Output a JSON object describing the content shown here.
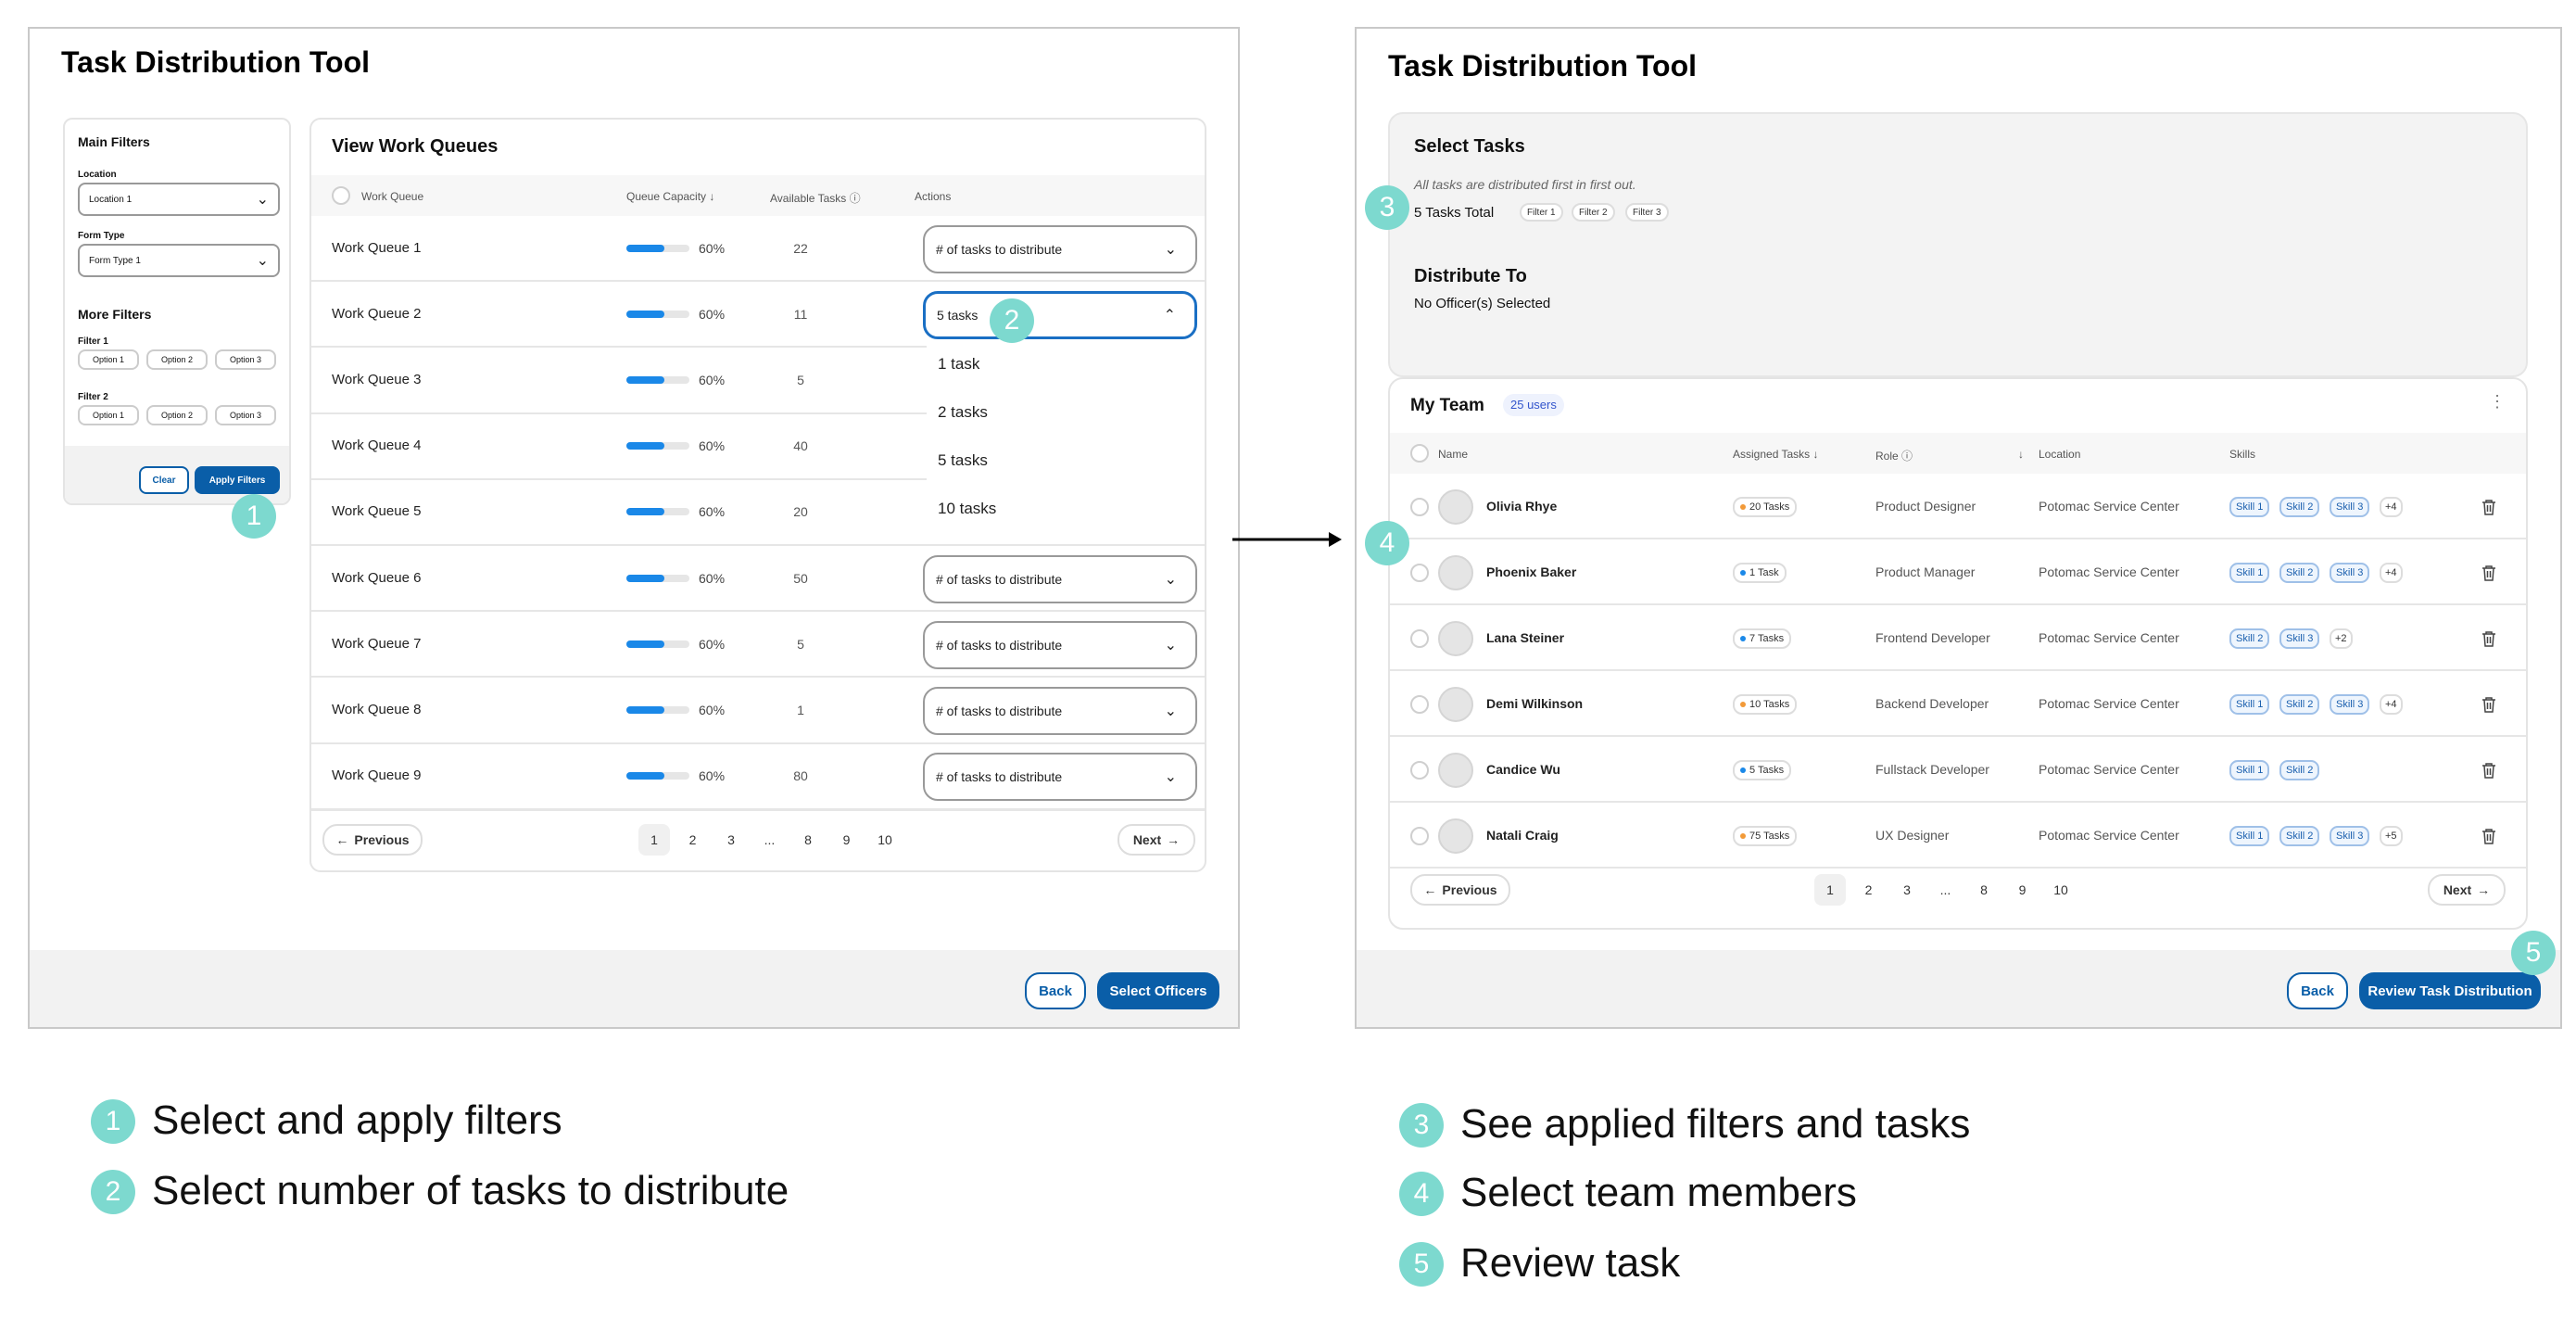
{
  "left_screen": {
    "title": "Task Distribution Tool",
    "filters": {
      "main_heading": "Main Filters",
      "location_label": "Location",
      "location_value": "Location 1",
      "form_type_label": "Form Type",
      "form_type_value": "Form Type 1",
      "more_heading": "More Filters",
      "filter1_label": "Filter 1",
      "filter2_label": "Filter 2",
      "options": [
        "Option 1",
        "Option 2",
        "Option 3"
      ],
      "clear_label": "Clear",
      "apply_label": "Apply Filters"
    },
    "queues": {
      "title": "View Work Queues",
      "columns": [
        "Work Queue",
        "Queue Capacity",
        "Available Tasks",
        "Actions"
      ],
      "rows": [
        {
          "name": "Work Queue 1",
          "capacity_pct": 60,
          "capacity_label": "60%",
          "available": "22",
          "action": "# of tasks to distribute"
        },
        {
          "name": "Work Queue 2",
          "capacity_pct": 60,
          "capacity_label": "60%",
          "available": "11",
          "action": "5 tasks"
        },
        {
          "name": "Work Queue 3",
          "capacity_pct": 60,
          "capacity_label": "60%",
          "available": "5",
          "action": ""
        },
        {
          "name": "Work Queue 4",
          "capacity_pct": 60,
          "capacity_label": "60%",
          "available": "40",
          "action": ""
        },
        {
          "name": "Work Queue 5",
          "capacity_pct": 60,
          "capacity_label": "60%",
          "available": "20",
          "action": ""
        },
        {
          "name": "Work Queue 6",
          "capacity_pct": 60,
          "capacity_label": "60%",
          "available": "50",
          "action": "# of tasks to distribute"
        },
        {
          "name": "Work Queue 7",
          "capacity_pct": 60,
          "capacity_label": "60%",
          "available": "5",
          "action": "# of tasks to distribute"
        },
        {
          "name": "Work Queue 8",
          "capacity_pct": 60,
          "capacity_label": "60%",
          "available": "1",
          "action": "# of tasks to distribute"
        },
        {
          "name": "Work Queue 9",
          "capacity_pct": 60,
          "capacity_label": "60%",
          "available": "80",
          "action": "# of tasks to distribute"
        }
      ],
      "dropdown_options": [
        "1 task",
        "2 tasks",
        "5 tasks",
        "10 tasks"
      ]
    },
    "pagination": {
      "previous": "Previous",
      "next": "Next",
      "pages": [
        "1",
        "2",
        "3",
        "...",
        "8",
        "9",
        "10"
      ]
    },
    "back_label": "Back",
    "select_officers_label": "Select Officers"
  },
  "right_screen": {
    "title": "Task Distribution Tool",
    "select_tasks": {
      "heading": "Select Tasks",
      "note": "All tasks are distributed first in first out.",
      "total": "5 Tasks Total",
      "chips": [
        "Filter 1",
        "Filter 2",
        "Filter 3"
      ]
    },
    "distribute_to": {
      "heading": "Distribute To",
      "value": "No Officer(s) Selected"
    },
    "team": {
      "title": "My Team",
      "count_badge": "25 users",
      "columns": [
        "Name",
        "Assigned Tasks",
        "Role",
        "Location",
        "Skills"
      ],
      "members": [
        {
          "name": "Olivia Rhye",
          "tasks": "20 Tasks",
          "dot": "#f29a38",
          "role": "Product Designer",
          "location": "Potomac Service Center",
          "skills": [
            "Skill 1",
            "Skill 2",
            "Skill 3"
          ],
          "more": "+4"
        },
        {
          "name": "Phoenix Baker",
          "tasks": "1 Task",
          "dot": "#1a88e8",
          "role": "Product Manager",
          "location": "Potomac Service Center",
          "skills": [
            "Skill 1",
            "Skill 2",
            "Skill 3"
          ],
          "more": "+4"
        },
        {
          "name": "Lana Steiner",
          "tasks": "7 Tasks",
          "dot": "#1a88e8",
          "role": "Frontend Developer",
          "location": "Potomac Service Center",
          "skills": [
            "Skill 2",
            "Skill 3"
          ],
          "more": "+2"
        },
        {
          "name": "Demi Wilkinson",
          "tasks": "10 Tasks",
          "dot": "#f29a38",
          "role": "Backend Developer",
          "location": "Potomac Service Center",
          "skills": [
            "Skill 1",
            "Skill 2",
            "Skill 3"
          ],
          "more": "+4"
        },
        {
          "name": "Candice Wu",
          "tasks": "5 Tasks",
          "dot": "#1a88e8",
          "role": "Fullstack Developer",
          "location": "Potomac Service Center",
          "skills": [
            "Skill 1",
            "Skill 2"
          ],
          "more": ""
        },
        {
          "name": "Natali Craig",
          "tasks": "75 Tasks",
          "dot": "#f29a38",
          "role": "UX Designer",
          "location": "Potomac Service Center",
          "skills": [
            "Skill 1",
            "Skill 2",
            "Skill 3"
          ],
          "more": "+5"
        }
      ]
    },
    "pagination": {
      "previous": "Previous",
      "next": "Next",
      "pages": [
        "1",
        "2",
        "3",
        "...",
        "8",
        "9",
        "10"
      ]
    },
    "back_label": "Back",
    "review_label": "Review Task Distribution"
  },
  "steps": [
    {
      "num": "1",
      "text": "Select and apply filters"
    },
    {
      "num": "2",
      "text": "Select number of tasks to distribute"
    },
    {
      "num": "3",
      "text": "See applied filters and tasks"
    },
    {
      "num": "4",
      "text": "Select team members"
    },
    {
      "num": "5",
      "text": "Review task"
    }
  ],
  "colors": {
    "primary": "#0a5ea8",
    "bar": "#1a88e8",
    "step_badge": "#7dd9cf"
  }
}
